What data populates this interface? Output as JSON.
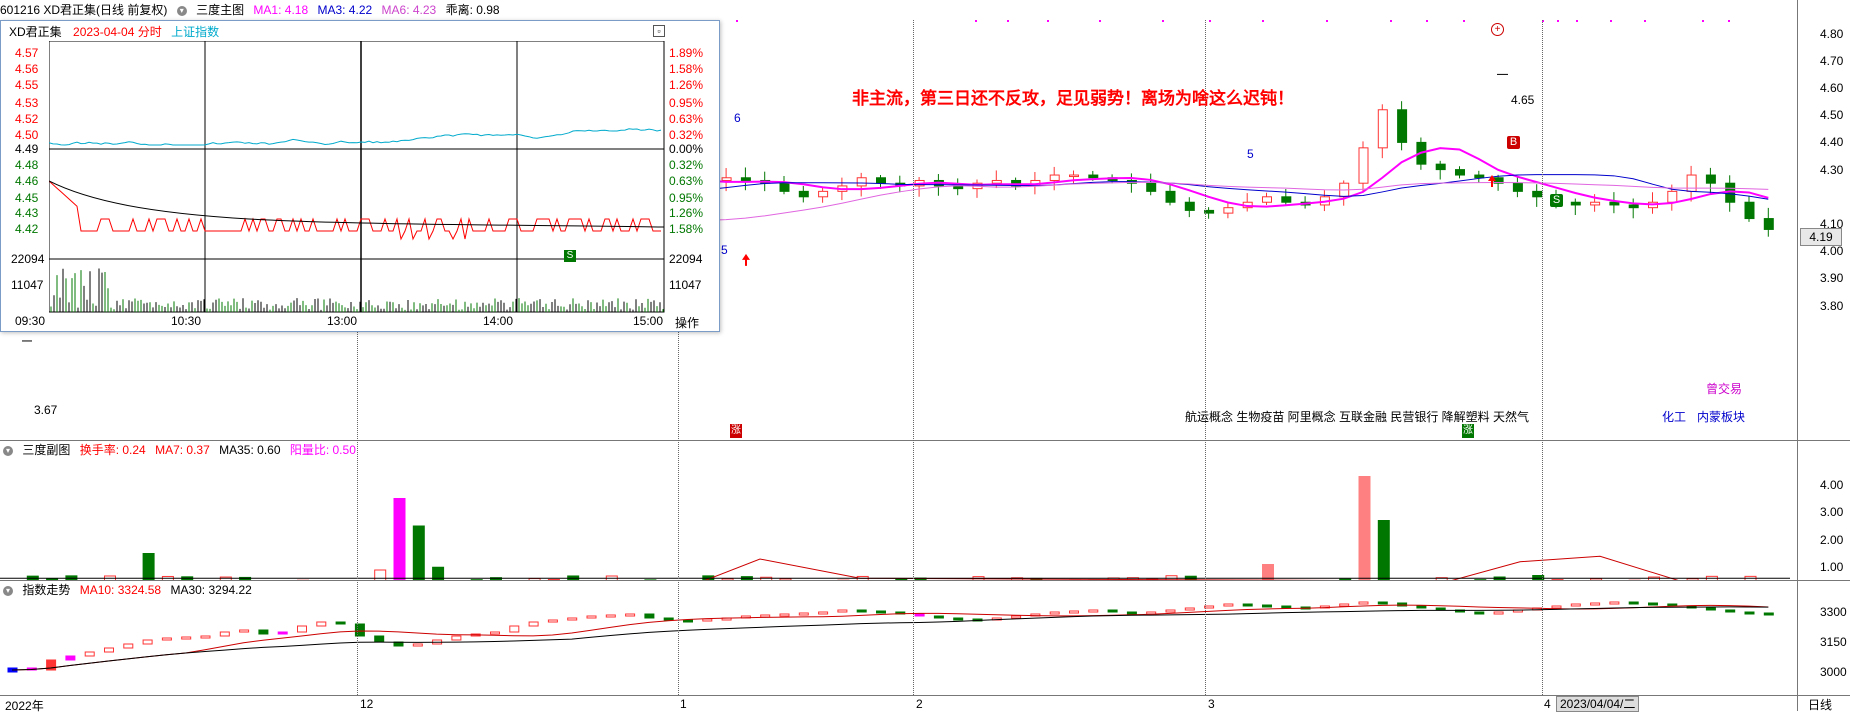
{
  "header": {
    "stock": "601216 XD君正集(日线 前复权)",
    "chart_name": "三度主图",
    "ma1": "MA1: 4.18",
    "ma3": "MA3: 4.22",
    "ma6": "MA6: 4.23",
    "divergence": "乖离: 0.98"
  },
  "annotation": "非主流，第三日还不反攻，足见弱势！离场为啥这么迟钝！",
  "main_panel": {
    "price_axis": [
      "4.80",
      "4.70",
      "4.60",
      "4.50",
      "4.40",
      "4.30",
      "4.10",
      "4.00",
      "3.90",
      "3.80"
    ],
    "current_price": "4.19",
    "high_marker": "4.65",
    "low_marker": "3.67",
    "wave_label_6": "6",
    "wave_label_5a": "5",
    "wave_label_5b": "5",
    "buy_badge": "B",
    "sell_badge": "S",
    "sectors": "航运概念 生物疫苗 阿里概念 互联金融 民营银行 降解塑料 天然气",
    "sector_tag_a": "曾交易",
    "sector_tag_b": "化工",
    "sector_tag_c": "内蒙板块",
    "marker_a": "涨",
    "marker_b": "涨"
  },
  "popup": {
    "title": "XD君正集",
    "date": "2023-04-04 分时",
    "index": "上证指数",
    "left_prices": [
      "4.57",
      "4.56",
      "4.55",
      "4.53",
      "4.52",
      "4.50",
      "4.49",
      "4.48",
      "4.46",
      "4.45",
      "4.43",
      "4.42"
    ],
    "right_pcts": [
      "1.89%",
      "1.58%",
      "1.26%",
      "0.95%",
      "0.63%",
      "0.32%",
      "0.00%",
      "0.32%",
      "0.63%",
      "0.95%",
      "1.26%",
      "1.58%"
    ],
    "vol_top": "22094",
    "vol_mid": "11047",
    "time_labels": [
      "09:30",
      "10:30",
      "13:00",
      "14:00",
      "15:00"
    ],
    "action": "操作",
    "s_badge": "S"
  },
  "volume_panel": {
    "title": "三度副图",
    "turnover": "换手率: 0.24",
    "ma7": "MA7: 0.37",
    "ma35": "MA35: 0.60",
    "yang_ratio": "阳量比: 0.50",
    "axis": [
      "4.00",
      "3.00",
      "2.00",
      "1.00"
    ]
  },
  "index_panel": {
    "title": "指数走势",
    "ma10": "MA10: 3324.58",
    "ma30": "MA30: 3294.22",
    "axis": [
      "3300",
      "3150",
      "3000"
    ]
  },
  "time_axis": {
    "labels": [
      "2022年",
      "12",
      "1",
      "2",
      "3",
      "4"
    ],
    "current_date": "2023/04/04/二",
    "period": "日线"
  },
  "colors": {
    "up": "#ff3333",
    "down": "#007700",
    "ma_magenta": "#ff00ff",
    "ma_blue": "#0000cc",
    "ma_violet": "#e066e0",
    "annotation": "#ff0000"
  }
}
